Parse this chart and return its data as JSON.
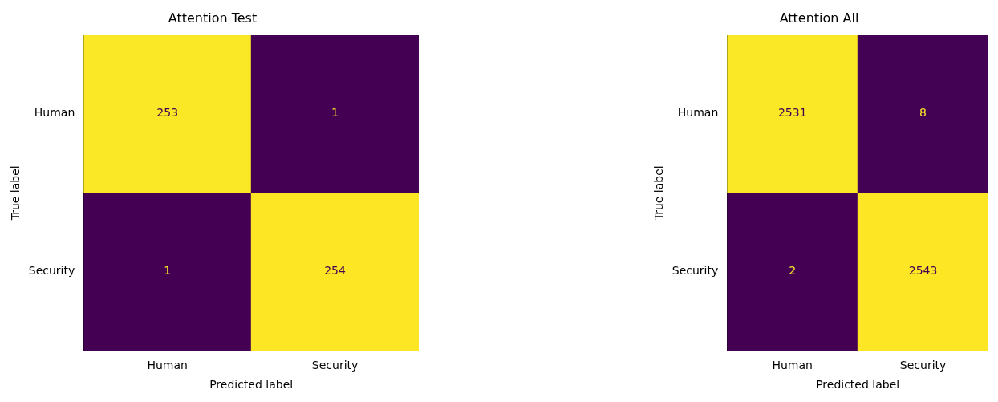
{
  "chart_data": [
    {
      "type": "heatmap",
      "title": "Attention Test",
      "xlabel": "Predicted label",
      "ylabel": "True label",
      "categories": [
        "Human",
        "Security"
      ],
      "y_categories": [
        "Human",
        "Security"
      ],
      "cells": [
        [
          253,
          1
        ],
        [
          1,
          254
        ]
      ],
      "data_labels": true
    },
    {
      "type": "heatmap",
      "title": "Attention All",
      "xlabel": "Predicted label",
      "ylabel": "True label",
      "categories": [
        "Human",
        "Security"
      ],
      "y_categories": [
        "Human",
        "Security"
      ],
      "cells": [
        [
          2531,
          8
        ],
        [
          2,
          2543
        ]
      ],
      "data_labels": true
    }
  ]
}
